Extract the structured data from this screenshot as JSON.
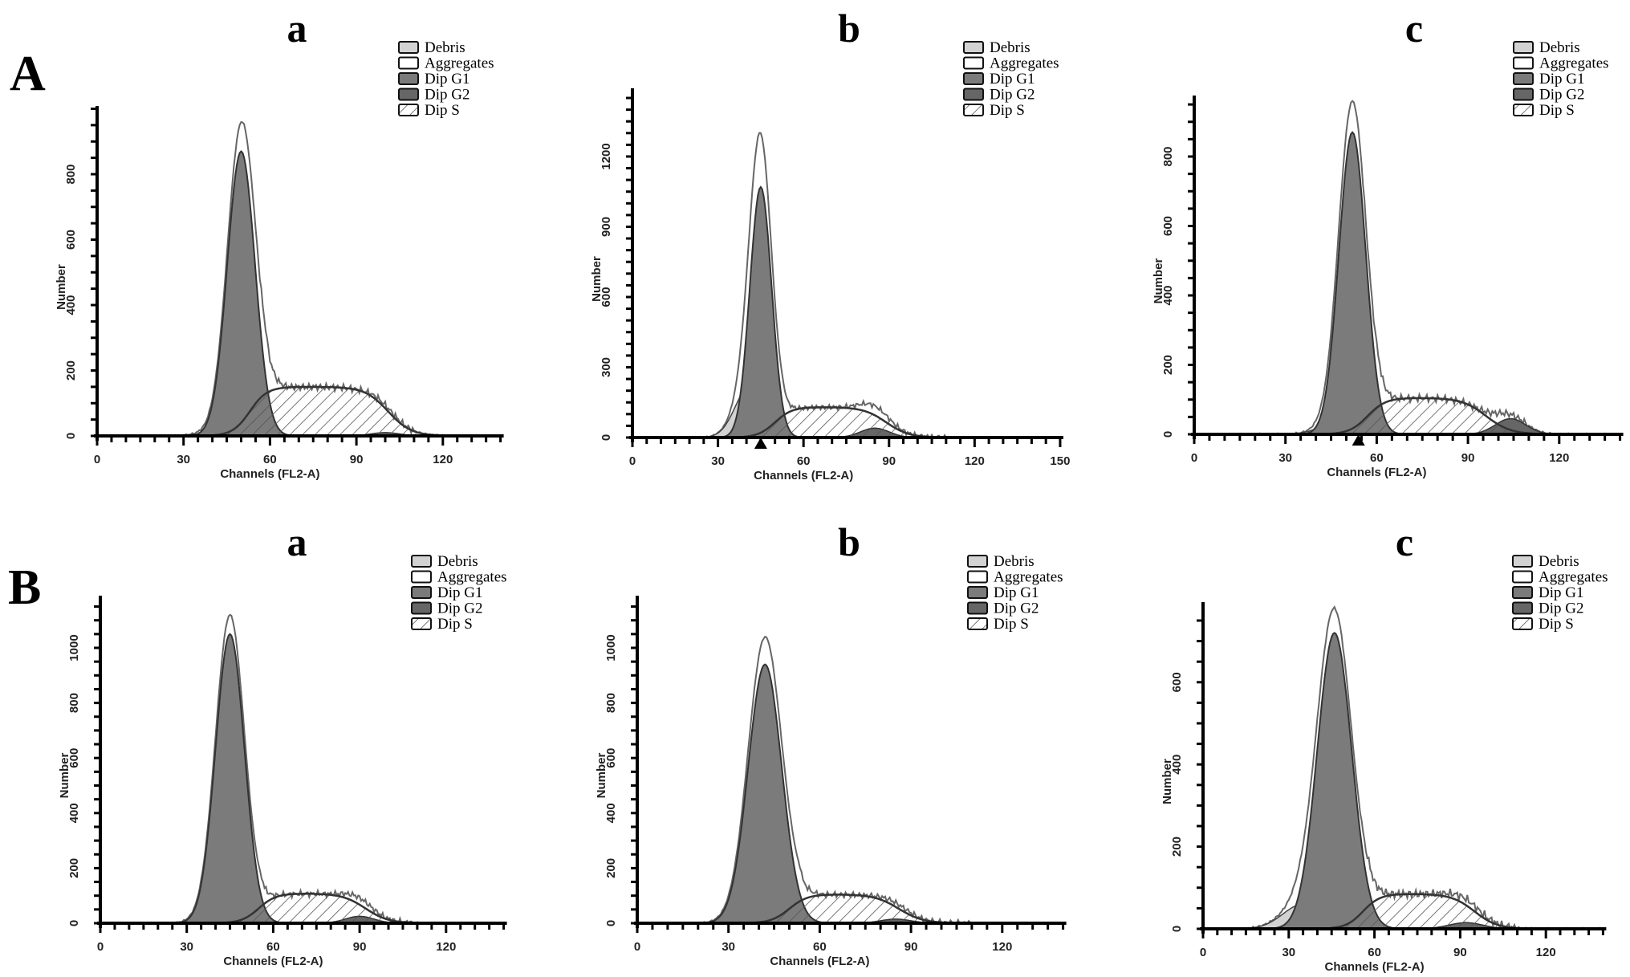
{
  "figure": {
    "row_labels": [
      "A",
      "B"
    ]
  },
  "legend_items": [
    "Debris",
    "Aggregates",
    "Dip G1",
    "Dip G2",
    "Dip S"
  ],
  "colors": {
    "debris": "#d2d2d2",
    "aggregates": "#ffffff",
    "g1": "#7b7b7b",
    "g2": "#666666",
    "s_hatch": "#555555",
    "outline": "#444444"
  },
  "chart_data": [
    {
      "type": "area",
      "row": "A",
      "title": "a",
      "xlabel": "Channels (FL2-A)",
      "ylabel": "Number",
      "xticks": [
        0,
        30,
        60,
        90,
        120
      ],
      "yticks": [
        0,
        200,
        400,
        600,
        800
      ],
      "xlim": [
        0,
        140
      ],
      "ylim": [
        0,
        1000
      ],
      "g1": {
        "mean": 50,
        "peak": 870,
        "sd": 4.8
      },
      "g2": {
        "mean": 100,
        "peak": 10,
        "sd": 5
      },
      "s": {
        "start": 53,
        "end": 101,
        "level": 150
      },
      "debris": {
        "mean": 40,
        "peak": 8,
        "sd": 6
      },
      "total_peak": 960,
      "marker": null
    },
    {
      "type": "area",
      "row": "A",
      "title": "b",
      "xlabel": "Channels (FL2-A)",
      "ylabel": "Number",
      "xticks": [
        0,
        30,
        60,
        90,
        120,
        150
      ],
      "yticks": [
        0,
        300,
        600,
        900,
        1200
      ],
      "xlim": [
        0,
        150
      ],
      "ylim": [
        0,
        1400
      ],
      "g1": {
        "mean": 45,
        "peak": 1070,
        "sd": 3.8
      },
      "g2": {
        "mean": 85,
        "peak": 40,
        "sd": 5
      },
      "s": {
        "start": 50,
        "end": 89,
        "level": 130
      },
      "debris": {
        "mean": 41,
        "peak": 215,
        "sd": 5
      },
      "total_peak": 1300,
      "marker": 45
    },
    {
      "type": "area",
      "row": "A",
      "title": "c",
      "xlabel": "Channels (FL2-A)",
      "ylabel": "Number",
      "xticks": [
        0,
        30,
        60,
        90,
        120
      ],
      "yticks": [
        0,
        200,
        400,
        600,
        800
      ],
      "xlim": [
        0,
        140
      ],
      "ylim": [
        0,
        1000
      ],
      "g1": {
        "mean": 52,
        "peak": 870,
        "sd": 4.4
      },
      "g2": {
        "mean": 104,
        "peak": 45,
        "sd": 5
      },
      "s": {
        "start": 57,
        "end": 96,
        "level": 105
      },
      "debris": {
        "mean": 48,
        "peak": 40,
        "sd": 6
      },
      "total_peak": 960,
      "marker": 54
    },
    {
      "type": "area",
      "row": "B",
      "title": "a",
      "xlabel": "Channels (FL2-A)",
      "ylabel": "Number",
      "xticks": [
        0,
        30,
        60,
        90,
        120
      ],
      "yticks": [
        0,
        200,
        400,
        600,
        800,
        1000
      ],
      "xlim": [
        0,
        140
      ],
      "ylim": [
        0,
        1200
      ],
      "g1": {
        "mean": 45,
        "peak": 1050,
        "sd": 5
      },
      "g2": {
        "mean": 90,
        "peak": 25,
        "sd": 5
      },
      "s": {
        "start": 55,
        "end": 92,
        "level": 108
      },
      "debris": {
        "mean": 35,
        "peak": 5,
        "sd": 5
      },
      "total_peak": 1120,
      "marker": null
    },
    {
      "type": "area",
      "row": "B",
      "title": "b",
      "xlabel": "Channels (FL2-A)",
      "ylabel": "Number",
      "xticks": [
        0,
        30,
        60,
        90,
        120
      ],
      "yticks": [
        0,
        200,
        400,
        600,
        800,
        1000
      ],
      "xlim": [
        0,
        140
      ],
      "ylim": [
        0,
        1200
      ],
      "g1": {
        "mean": 42,
        "peak": 940,
        "sd": 5.5
      },
      "g2": {
        "mean": 85,
        "peak": 15,
        "sd": 5
      },
      "s": {
        "start": 50,
        "end": 86,
        "level": 105
      },
      "debris": {
        "mean": 32,
        "peak": 5,
        "sd": 5
      },
      "total_peak": 1040,
      "marker": null
    },
    {
      "type": "area",
      "row": "B",
      "title": "c",
      "xlabel": "Channels (FL2-A)",
      "ylabel": "Number",
      "xticks": [
        0,
        30,
        60,
        90,
        120
      ],
      "yticks": [
        0,
        200,
        400,
        600
      ],
      "xlim": [
        0,
        140
      ],
      "ylim": [
        0,
        800
      ],
      "g1": {
        "mean": 46,
        "peak": 720,
        "sd": 6
      },
      "g2": {
        "mean": 92,
        "peak": 15,
        "sd": 6
      },
      "s": {
        "start": 56,
        "end": 95,
        "level": 85
      },
      "debris": {
        "mean": 35,
        "peak": 60,
        "sd": 7
      },
      "total_peak": 780,
      "marker": null
    }
  ]
}
